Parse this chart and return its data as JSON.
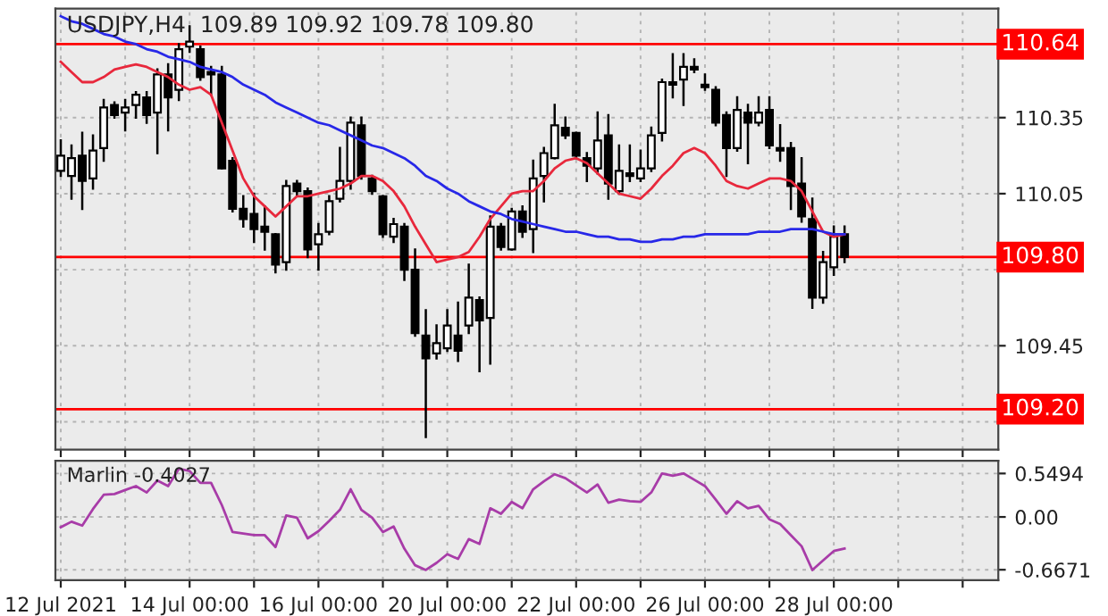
{
  "chart_data": [
    {
      "type": "candlestick",
      "title": "USDJPY,H4  109.89 109.92 109.78 109.80",
      "tick_labels": "y",
      "grid": true,
      "categories": [
        null,
        null,
        null,
        null,
        null,
        null,
        null,
        null,
        null,
        null,
        null,
        null,
        null,
        null,
        null,
        null,
        null,
        null,
        null,
        null,
        null,
        null,
        null,
        null,
        null,
        null,
        null,
        null,
        null,
        null,
        null,
        null,
        null,
        null,
        null,
        null,
        null,
        null,
        null,
        null,
        null,
        null,
        null,
        null,
        null,
        null,
        null,
        null,
        null,
        null,
        null,
        null,
        null,
        null,
        null,
        null,
        null,
        null,
        null,
        null,
        null,
        null,
        null,
        null,
        null,
        null,
        null,
        null,
        null,
        null,
        null,
        null,
        null,
        null
      ],
      "color": "#000000",
      "ohlc": [
        [
          110.14,
          110.26,
          110.12,
          110.2
        ],
        [
          110.12,
          110.24,
          110.03,
          110.19
        ],
        [
          110.2,
          110.29,
          109.99,
          110.1
        ],
        [
          110.11,
          110.28,
          110.07,
          110.22
        ],
        [
          110.23,
          110.42,
          110.18,
          110.39
        ],
        [
          110.4,
          110.41,
          110.35,
          110.36
        ],
        [
          110.37,
          110.42,
          110.3,
          110.39
        ],
        [
          110.4,
          110.45,
          110.35,
          110.44
        ],
        [
          110.43,
          110.45,
          110.33,
          110.36
        ],
        [
          110.37,
          110.54,
          110.21,
          110.52
        ],
        [
          110.52,
          110.56,
          110.3,
          110.43
        ],
        [
          110.46,
          110.64,
          110.42,
          110.62
        ],
        [
          110.63,
          110.71,
          110.61,
          110.65
        ],
        [
          110.62,
          110.63,
          110.5,
          110.51
        ],
        [
          110.53,
          110.55,
          110.44,
          110.52
        ],
        [
          110.52,
          110.55,
          110.15,
          110.15
        ],
        [
          110.18,
          110.19,
          109.98,
          109.99
        ],
        [
          109.99,
          110.04,
          109.92,
          109.95
        ],
        [
          109.97,
          110.05,
          109.86,
          109.91
        ],
        [
          109.92,
          110.0,
          109.83,
          109.9
        ],
        [
          109.89,
          109.89,
          109.74,
          109.77
        ],
        [
          109.78,
          110.1,
          109.75,
          110.08
        ],
        [
          110.09,
          110.1,
          110.04,
          110.06
        ],
        [
          110.06,
          110.07,
          109.8,
          109.83
        ],
        [
          109.85,
          109.93,
          109.75,
          109.89
        ],
        [
          109.9,
          110.04,
          109.89,
          110.02
        ],
        [
          110.03,
          110.23,
          110.02,
          110.1
        ],
        [
          110.1,
          110.35,
          110.07,
          110.33
        ],
        [
          110.32,
          110.35,
          110.11,
          110.12
        ],
        [
          110.11,
          110.12,
          110.05,
          110.06
        ],
        [
          110.04,
          110.04,
          109.88,
          109.89
        ],
        [
          109.88,
          109.95,
          109.86,
          109.93
        ],
        [
          109.92,
          109.93,
          109.71,
          109.75
        ],
        [
          109.75,
          109.83,
          109.49,
          109.5
        ],
        [
          109.49,
          109.59,
          109.09,
          109.4
        ],
        [
          109.42,
          109.53,
          109.4,
          109.46
        ],
        [
          109.44,
          109.59,
          109.43,
          109.53
        ],
        [
          109.49,
          109.62,
          109.39,
          109.43
        ],
        [
          109.53,
          109.77,
          109.5,
          109.64
        ],
        [
          109.63,
          109.64,
          109.35,
          109.55
        ],
        [
          109.56,
          109.96,
          109.38,
          109.92
        ],
        [
          109.92,
          109.93,
          109.83,
          109.84
        ],
        [
          109.83,
          109.99,
          109.83,
          109.98
        ],
        [
          109.98,
          110.0,
          109.88,
          109.9
        ],
        [
          109.91,
          110.18,
          109.82,
          110.11
        ],
        [
          110.12,
          110.23,
          110.02,
          110.21
        ],
        [
          110.19,
          110.4,
          110.19,
          110.32
        ],
        [
          110.31,
          110.35,
          110.27,
          110.28
        ],
        [
          110.29,
          110.29,
          110.19,
          110.2
        ],
        [
          110.19,
          110.21,
          110.1,
          110.16
        ],
        [
          110.15,
          110.37,
          110.13,
          110.26
        ],
        [
          110.28,
          110.36,
          110.03,
          110.09
        ],
        [
          110.06,
          110.24,
          110.05,
          110.14
        ],
        [
          110.13,
          110.24,
          110.1,
          110.12
        ],
        [
          110.11,
          110.22,
          110.1,
          110.15
        ],
        [
          110.15,
          110.31,
          110.14,
          110.28
        ],
        [
          110.29,
          110.5,
          110.26,
          110.49
        ],
        [
          110.49,
          110.6,
          110.43,
          110.48
        ],
        [
          110.5,
          110.6,
          110.4,
          110.55
        ],
        [
          110.55,
          110.58,
          110.53,
          110.54
        ],
        [
          110.48,
          110.52,
          110.46,
          110.47
        ],
        [
          110.46,
          110.47,
          110.32,
          110.33
        ],
        [
          110.36,
          110.37,
          110.12,
          110.23
        ],
        [
          110.23,
          110.43,
          110.22,
          110.38
        ],
        [
          110.37,
          110.4,
          110.17,
          110.33
        ],
        [
          110.33,
          110.43,
          110.32,
          110.37
        ],
        [
          110.38,
          110.43,
          110.23,
          110.24
        ],
        [
          110.23,
          110.32,
          110.18,
          110.22
        ],
        [
          110.23,
          110.25,
          109.99,
          110.08
        ],
        [
          110.09,
          110.19,
          109.94,
          109.96
        ],
        [
          109.95,
          110.03,
          109.6,
          109.64
        ],
        [
          109.64,
          109.82,
          109.62,
          109.78
        ],
        [
          109.76,
          109.92,
          109.73,
          109.88
        ],
        [
          109.89,
          109.92,
          109.78,
          109.8
        ]
      ],
      "series": [
        {
          "type": "line",
          "color": "#e8283c",
          "values": [
            110.57,
            110.53,
            110.49,
            110.49,
            110.51,
            110.54,
            110.55,
            110.56,
            110.55,
            110.53,
            110.51,
            110.48,
            110.46,
            110.47,
            110.44,
            110.33,
            110.22,
            110.11,
            110.04,
            110.0,
            109.96,
            110.0,
            110.04,
            110.04,
            110.05,
            110.06,
            110.07,
            110.09,
            110.12,
            110.12,
            110.1,
            110.06,
            110.0,
            109.92,
            109.85,
            109.78,
            109.79,
            109.8,
            109.82,
            109.88,
            109.95,
            110.0,
            110.05,
            110.06,
            110.06,
            110.1,
            110.15,
            110.18,
            110.19,
            110.17,
            110.13,
            110.09,
            110.05,
            110.04,
            110.03,
            110.07,
            110.12,
            110.16,
            110.21,
            110.23,
            110.21,
            110.16,
            110.1,
            110.08,
            110.07,
            110.09,
            110.11,
            110.11,
            110.1,
            110.06,
            109.98,
            109.9,
            109.88,
            109.89
          ]
        },
        {
          "type": "line",
          "color": "#2828e8",
          "values": [
            110.75,
            110.73,
            110.72,
            110.7,
            110.68,
            110.67,
            110.65,
            110.64,
            110.62,
            110.61,
            110.59,
            110.58,
            110.57,
            110.55,
            110.54,
            110.53,
            110.51,
            110.48,
            110.46,
            110.44,
            110.41,
            110.39,
            110.37,
            110.35,
            110.33,
            110.32,
            110.3,
            110.28,
            110.26,
            110.24,
            110.23,
            110.21,
            110.19,
            110.16,
            110.12,
            110.1,
            110.07,
            110.05,
            110.02,
            110.0,
            109.98,
            109.97,
            109.95,
            109.94,
            109.93,
            109.92,
            109.91,
            109.9,
            109.9,
            109.89,
            109.88,
            109.88,
            109.87,
            109.87,
            109.86,
            109.86,
            109.87,
            109.87,
            109.88,
            109.88,
            109.89,
            109.89,
            109.89,
            109.89,
            109.89,
            109.9,
            109.9,
            109.9,
            109.91,
            109.91,
            109.91,
            109.9,
            109.89,
            109.89
          ]
        }
      ],
      "ylim": [
        109.04,
        110.78
      ],
      "yticks": [
        110.35,
        110.05,
        {
          "value": 109.75,
          "label": null
        },
        109.45,
        {
          "value": 109.15,
          "label": null
        }
      ],
      "ref_lines": [
        {
          "axis": "y",
          "value": 110.64,
          "label": "110.64",
          "color": "#ff0000"
        },
        {
          "axis": "y",
          "value": 109.8,
          "label": "109.80",
          "color": "#ff0000"
        },
        {
          "axis": "y",
          "value": 109.2,
          "label": "109.20",
          "color": "#ff0000"
        }
      ]
    },
    {
      "type": "line",
      "title": "Marlin -0.4027",
      "grid": true,
      "series": [
        {
          "color": "#a83ca8",
          "values": [
            -0.13,
            -0.06,
            -0.11,
            0.1,
            0.28,
            0.29,
            0.34,
            0.39,
            0.31,
            0.46,
            0.39,
            0.61,
            0.58,
            0.43,
            0.43,
            0.15,
            -0.19,
            -0.21,
            -0.23,
            -0.23,
            -0.38,
            0.02,
            -0.01,
            -0.27,
            -0.18,
            -0.05,
            0.09,
            0.35,
            0.09,
            -0.01,
            -0.19,
            -0.12,
            -0.4,
            -0.61,
            -0.67,
            -0.58,
            -0.47,
            -0.53,
            -0.28,
            -0.34,
            0.11,
            0.04,
            0.19,
            0.11,
            0.35,
            0.45,
            0.54,
            0.49,
            0.4,
            0.31,
            0.41,
            0.18,
            0.22,
            0.2,
            0.19,
            0.31,
            0.55,
            0.52,
            0.55,
            0.47,
            0.39,
            0.22,
            0.04,
            0.2,
            0.11,
            0.14,
            -0.03,
            -0.09,
            -0.23,
            -0.37,
            -0.67,
            -0.55,
            -0.43,
            -0.4
          ]
        }
      ],
      "categories": [
        "12 Jul 2021",
        null,
        null,
        null,
        null,
        null,
        null,
        null,
        null,
        null,
        null,
        null,
        "14 Jul 00:00",
        null,
        null,
        null,
        null,
        null,
        null,
        null,
        null,
        null,
        null,
        null,
        "16 Jul 00:00",
        null,
        null,
        null,
        null,
        null,
        null,
        null,
        null,
        null,
        null,
        null,
        "20 Jul 00:00",
        null,
        null,
        null,
        null,
        null,
        null,
        null,
        null,
        null,
        null,
        null,
        "22 Jul 00:00",
        null,
        null,
        null,
        null,
        null,
        null,
        null,
        null,
        null,
        null,
        null,
        "26 Jul 00:00",
        null,
        null,
        null,
        null,
        null,
        null,
        null,
        null,
        null,
        null,
        null,
        "28 Jul 00:00",
        null
      ],
      "ylim": [
        -0.8,
        0.71
      ],
      "yticks": [
        0.5494,
        {
          "value": 0,
          "label": "0.00"
        },
        -0.6671
      ]
    }
  ]
}
